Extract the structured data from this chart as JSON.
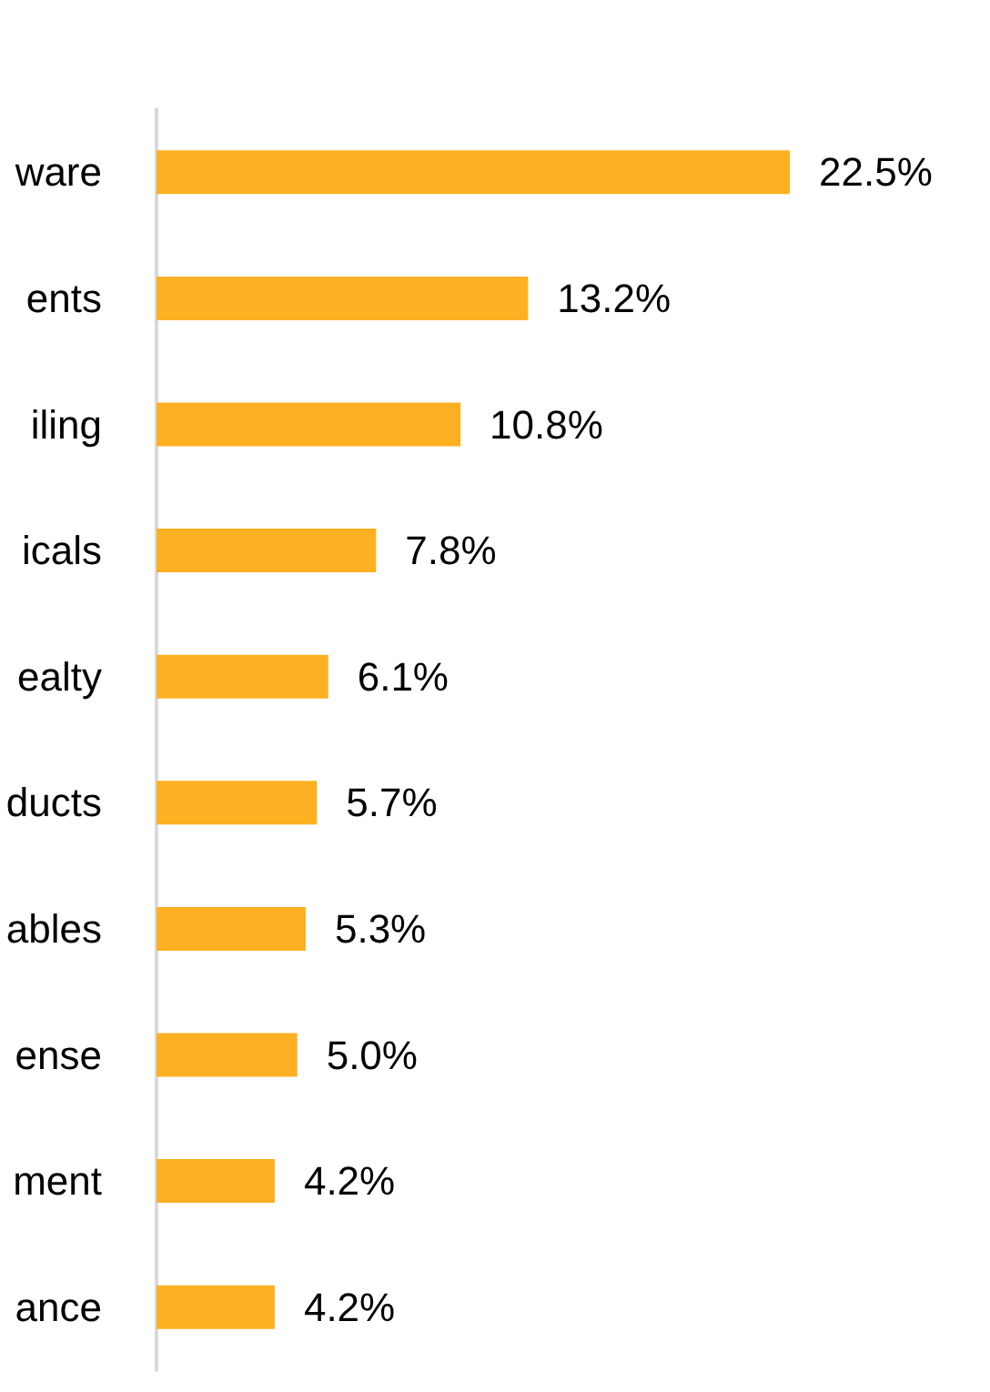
{
  "chart_data": {
    "type": "bar",
    "orientation": "horizontal",
    "categories": [
      "ware",
      "ents",
      "iling",
      "icals",
      "ealty",
      "ducts",
      "ables",
      "ense",
      "ment",
      "ance"
    ],
    "values": [
      22.5,
      13.2,
      10.8,
      7.8,
      6.1,
      5.7,
      5.3,
      5.0,
      4.2,
      4.2
    ],
    "value_labels": [
      "22.5%",
      "13.2%",
      "10.8%",
      "7.8%",
      "6.1%",
      "5.7%",
      "5.3%",
      "5.0%",
      "4.2%",
      "4.2%"
    ],
    "color": "#fdb022",
    "tick_labels": "y"
  }
}
